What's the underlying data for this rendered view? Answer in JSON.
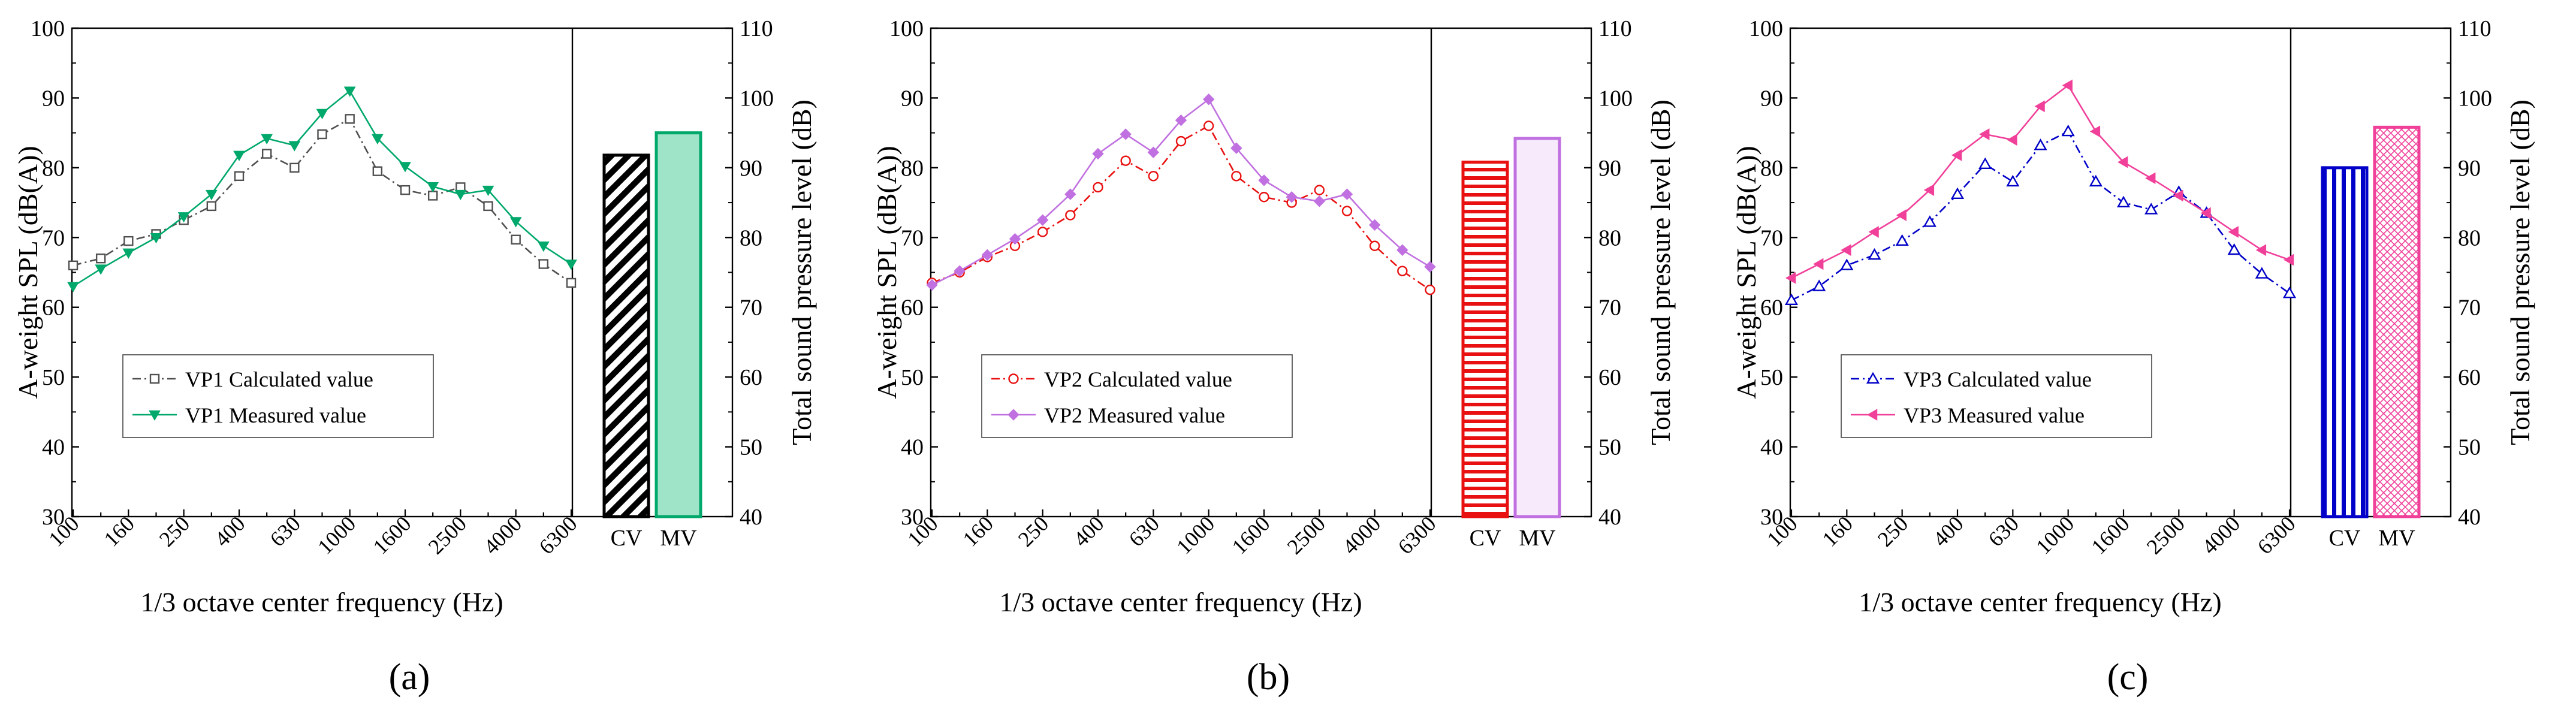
{
  "chart_data": [
    {
      "type": "line",
      "panel_label": "(a)",
      "title": "",
      "xlabel": "1/3 octave center frequency (Hz)",
      "ylabel": "A-weight SPL (dB(A))",
      "ylabel_right": "Total sound pressure level (dB)",
      "ylim": [
        30,
        100
      ],
      "ylim_right": [
        40,
        110
      ],
      "yticks": [
        30,
        40,
        50,
        60,
        70,
        80,
        90,
        100
      ],
      "yticks_right": [
        40,
        50,
        60,
        70,
        80,
        90,
        100,
        110
      ],
      "x": [
        100,
        125,
        160,
        200,
        250,
        315,
        400,
        500,
        630,
        800,
        1000,
        1250,
        1600,
        2000,
        2500,
        3150,
        4000,
        5000,
        6300
      ],
      "xtick_labels": [
        "100",
        "160",
        "250",
        "400",
        "630",
        "1000",
        "1600",
        "2500",
        "4000",
        "6300"
      ],
      "grid": false,
      "legend_position": "bottom-left",
      "series": [
        {
          "name": "VP1 Calculated value",
          "color": "#505050",
          "dash": "dash-dot",
          "marker": "square-open",
          "values": [
            66.0,
            67.0,
            69.5,
            70.5,
            72.5,
            74.5,
            78.8,
            82.0,
            80.0,
            84.8,
            87.0,
            79.5,
            76.8,
            76.0,
            77.2,
            74.5,
            69.7,
            66.2,
            63.5
          ]
        },
        {
          "name": "VP1 Measured value",
          "color": "#00A86B",
          "dash": "solid",
          "marker": "triangle-down-filled",
          "values": [
            63.0,
            65.5,
            67.8,
            70.0,
            73.0,
            76.2,
            81.8,
            84.2,
            83.2,
            87.8,
            91.0,
            84.2,
            80.2,
            77.3,
            76.2,
            76.8,
            72.3,
            68.8,
            66.2
          ]
        }
      ],
      "bars": {
        "categories": [
          "CV",
          "MV"
        ],
        "values": [
          91.8,
          95.0
        ],
        "colors": [
          "#000000",
          "#00A86B"
        ],
        "fills": [
          "#ffffff",
          "#9fe3c8"
        ],
        "patterns": [
          "diagonal",
          "solid"
        ]
      }
    },
    {
      "type": "line",
      "panel_label": "(b)",
      "title": "",
      "xlabel": "1/3 octave center frequency (Hz)",
      "ylabel": "A-weight SPL (dB(A))",
      "ylabel_right": "Total sound pressure level (dB)",
      "ylim": [
        30,
        100
      ],
      "ylim_right": [
        40,
        110
      ],
      "yticks": [
        30,
        40,
        50,
        60,
        70,
        80,
        90,
        100
      ],
      "yticks_right": [
        40,
        50,
        60,
        70,
        80,
        90,
        100,
        110
      ],
      "x": [
        100,
        125,
        160,
        200,
        250,
        315,
        400,
        500,
        630,
        800,
        1000,
        1250,
        1600,
        2000,
        2500,
        3150,
        4000,
        5000,
        6300
      ],
      "xtick_labels": [
        "100",
        "160",
        "250",
        "400",
        "630",
        "1000",
        "1600",
        "2500",
        "4000",
        "6300"
      ],
      "grid": false,
      "legend_position": "bottom-left",
      "series": [
        {
          "name": "VP2 Calculated value",
          "color": "#E81010",
          "dash": "dash-dot",
          "marker": "circle-open",
          "values": [
            63.5,
            65.0,
            67.2,
            68.8,
            70.8,
            73.2,
            77.2,
            81.0,
            78.8,
            83.8,
            86.0,
            78.8,
            75.8,
            75.0,
            76.8,
            73.8,
            68.8,
            65.2,
            62.5
          ]
        },
        {
          "name": "VP2 Measured value",
          "color": "#C070E0",
          "dash": "solid",
          "marker": "diamond-filled",
          "values": [
            63.2,
            65.2,
            67.5,
            69.8,
            72.5,
            76.2,
            82.0,
            84.8,
            82.2,
            86.8,
            89.8,
            82.8,
            78.2,
            75.8,
            75.2,
            76.2,
            71.8,
            68.2,
            65.8
          ]
        }
      ],
      "bars": {
        "categories": [
          "CV",
          "MV"
        ],
        "values": [
          90.8,
          94.2
        ],
        "colors": [
          "#E81010",
          "#C070E0"
        ],
        "fills": [
          "#ffffff",
          "#f6eafb"
        ],
        "patterns": [
          "horizontal",
          "solid"
        ]
      }
    },
    {
      "type": "line",
      "panel_label": "(c)",
      "title": "",
      "xlabel": "1/3 octave center frequency (Hz)",
      "ylabel": "A-weight SPL (dB(A))",
      "ylabel_right": "Total sound pressure level (dB)",
      "ylim": [
        30,
        100
      ],
      "ylim_right": [
        40,
        110
      ],
      "yticks": [
        30,
        40,
        50,
        60,
        70,
        80,
        90,
        100
      ],
      "yticks_right": [
        40,
        50,
        60,
        70,
        80,
        90,
        100,
        110
      ],
      "x": [
        100,
        125,
        160,
        200,
        250,
        315,
        400,
        500,
        630,
        800,
        1000,
        1250,
        1600,
        2000,
        2500,
        3150,
        4000,
        5000,
        6300
      ],
      "xtick_labels": [
        "100",
        "160",
        "250",
        "400",
        "630",
        "1000",
        "1600",
        "2500",
        "4000",
        "6300"
      ],
      "grid": false,
      "legend_position": "bottom-left",
      "series": [
        {
          "name": "VP3 Calculated value",
          "color": "#0000C8",
          "dash": "dash-dot",
          "marker": "triangle-up-open",
          "values": [
            61.0,
            63.0,
            66.0,
            67.5,
            69.5,
            72.2,
            76.2,
            80.5,
            78.0,
            83.2,
            85.2,
            78.0,
            75.0,
            74.0,
            76.5,
            73.5,
            68.2,
            64.8,
            62.0
          ]
        },
        {
          "name": "VP3 Measured value",
          "color": "#F0409A",
          "dash": "solid",
          "marker": "triangle-left-filled",
          "values": [
            64.2,
            66.2,
            68.2,
            70.8,
            73.2,
            76.8,
            81.8,
            84.8,
            84.0,
            88.8,
            91.8,
            85.2,
            80.8,
            78.5,
            76.0,
            73.5,
            70.8,
            68.2,
            66.8
          ]
        }
      ],
      "bars": {
        "categories": [
          "CV",
          "MV"
        ],
        "values": [
          90.0,
          95.8
        ],
        "colors": [
          "#0000C8",
          "#F0409A"
        ],
        "fills": [
          "#ffffff",
          "#ffffff"
        ],
        "patterns": [
          "vertical",
          "crosshatch"
        ]
      }
    }
  ]
}
